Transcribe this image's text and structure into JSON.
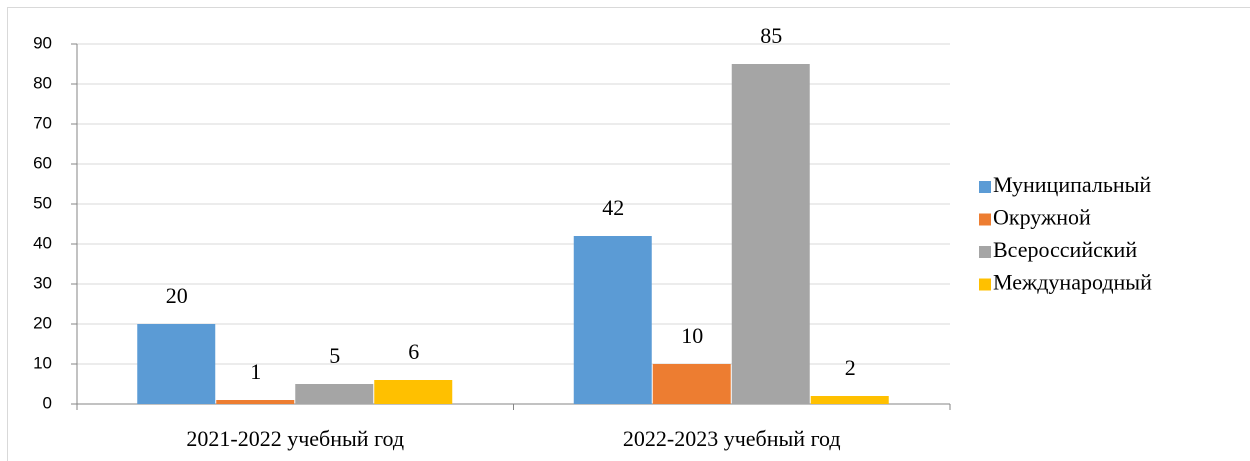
{
  "chart_data": {
    "type": "bar",
    "categories": [
      "2021-2022 учебный год",
      "2022-2023 учебный год"
    ],
    "series": [
      {
        "name": "Муниципальный",
        "color": "#5b9bd5",
        "values": [
          20,
          42
        ]
      },
      {
        "name": "Окружной",
        "color": "#ed7d31",
        "values": [
          1,
          10
        ]
      },
      {
        "name": "Всероссийский",
        "color": "#a5a5a5",
        "values": [
          5,
          85
        ]
      },
      {
        "name": "Международный",
        "color": "#ffc000",
        "values": [
          6,
          2
        ]
      }
    ],
    "ylim": [
      0,
      90
    ],
    "yticks": [
      0,
      10,
      20,
      30,
      40,
      50,
      60,
      70,
      80,
      90
    ],
    "grid": true,
    "legend": "right",
    "data_labels": true
  }
}
